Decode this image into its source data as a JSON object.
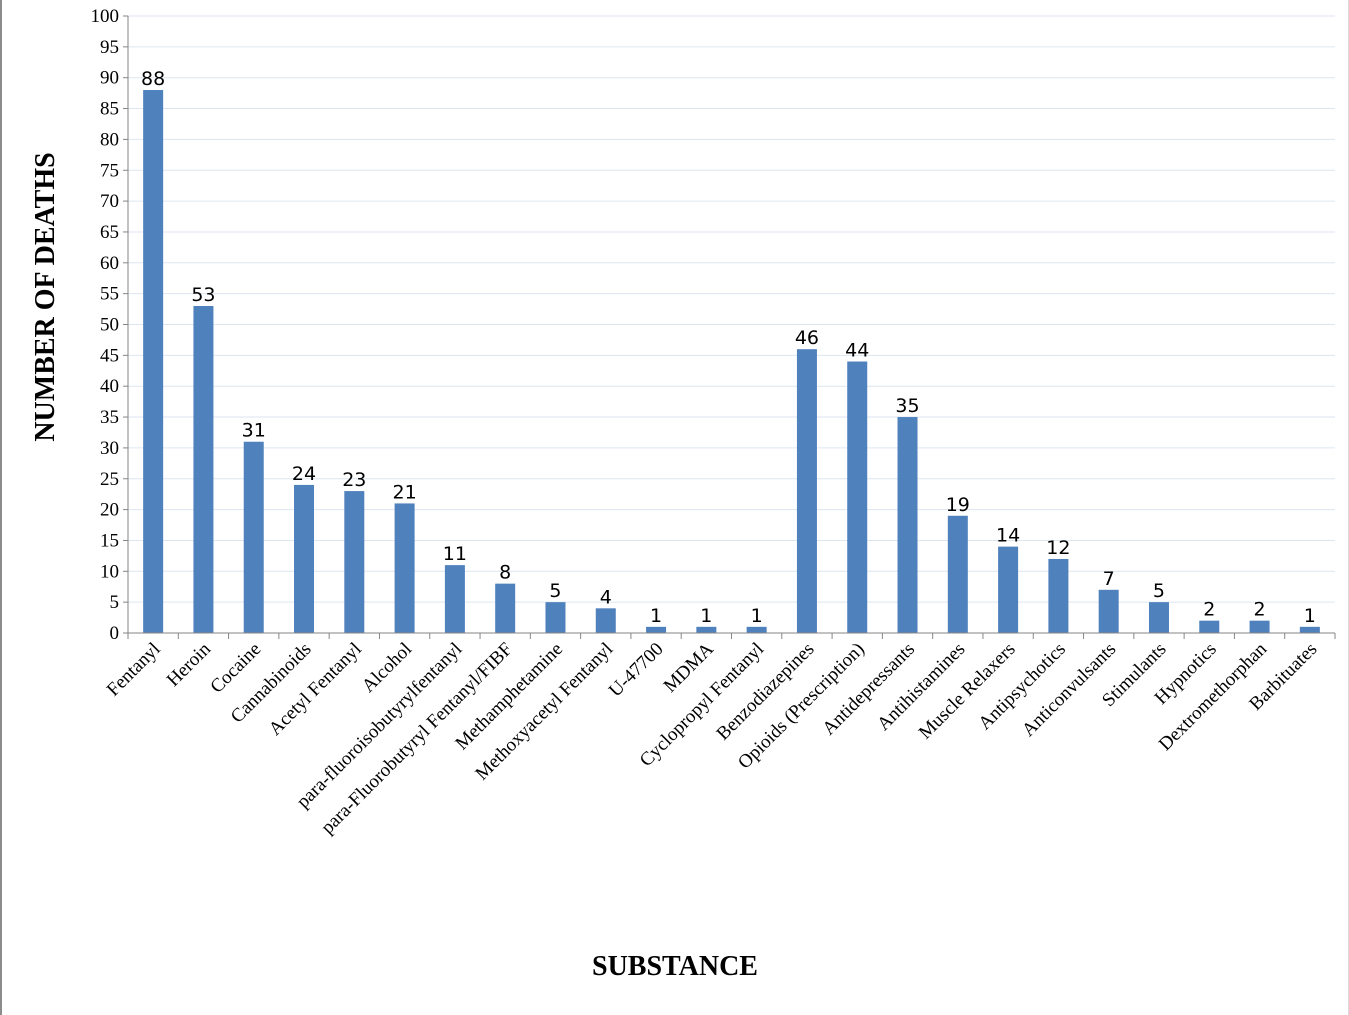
{
  "chart_data": {
    "type": "bar",
    "title": "",
    "xlabel": "SUBSTANCE",
    "ylabel": "NUMBER OF DEATHS",
    "ylim": [
      0,
      100
    ],
    "ytick_step": 5,
    "grid": true,
    "bar_color": "#4f81bd",
    "grid_color": "#dce6f1",
    "categories": [
      "Fentanyl",
      "Heroin",
      "Cocaine",
      "Cannabinoids",
      "Acetyl Fentanyl",
      "Alcohol",
      "para-fluoroisobutyrylfentanyl",
      "para-Fluorobutyryl Fentanyl/FIBF",
      "Methamphetamine",
      "Methoxyacetyl Fentanyl",
      "U-47700",
      "MDMA",
      "Cyclopropyl Fentanyl",
      "Benzodiazepines",
      "Opioids (Prescription)",
      "Antidepressants",
      "Antihistamines",
      "Muscle Relaxers",
      "Antipsychotics",
      "Anticonvulsants",
      "Stimulants",
      "Hypnotics",
      "Dextromethorphan",
      "Barbituates"
    ],
    "values": [
      88,
      53,
      31,
      24,
      23,
      21,
      11,
      8,
      5,
      4,
      1,
      1,
      1,
      46,
      44,
      35,
      19,
      14,
      12,
      7,
      5,
      2,
      2,
      1
    ]
  }
}
